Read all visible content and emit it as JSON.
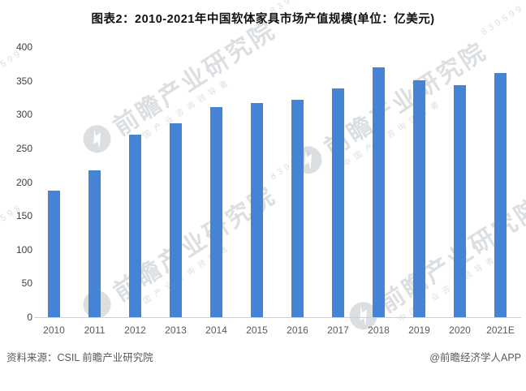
{
  "chart_data": {
    "type": "bar",
    "title": "图表2：2010-2021年中国软体家具市场产值规模(单位：亿美元)",
    "unit": "亿美元",
    "categories": [
      "2010",
      "2011",
      "2012",
      "2013",
      "2014",
      "2015",
      "2016",
      "2017",
      "2018",
      "2019",
      "2020",
      "2021E"
    ],
    "values": [
      188,
      217,
      270,
      287,
      311,
      317,
      322,
      339,
      370,
      351,
      344,
      361
    ],
    "ylim": [
      0,
      400
    ],
    "ytick_step": 50,
    "grid": false,
    "legend": false,
    "xlabel": "",
    "ylabel": "",
    "bar_color": "#4583D6",
    "axis_line_color": "#D0D0D0"
  },
  "footer": {
    "source": "资料来源：CSIL 前瞻产业研究院",
    "credit": "@前瞻经济学人APP"
  },
  "watermark": {
    "text": "前瞻产业研究院",
    "subtext": "中国产业咨询领导者",
    "code": "839599"
  }
}
